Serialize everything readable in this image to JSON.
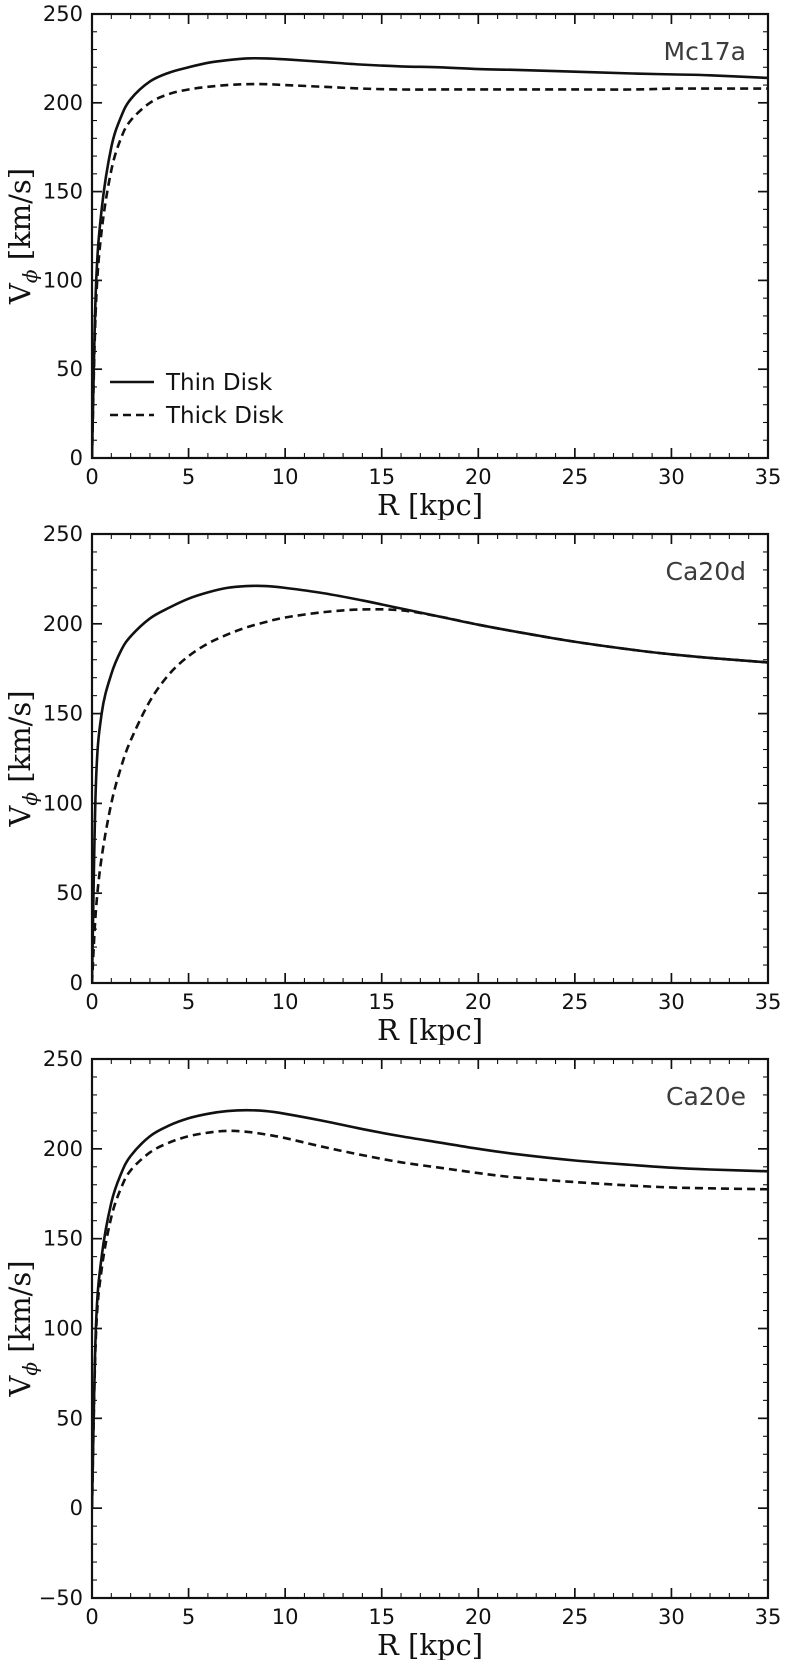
{
  "figure": {
    "description": "Rotation curves of thin and thick disks for three Milky Way models",
    "line_color": "#111111",
    "panel_label_color": "#3c3c3c"
  },
  "chart_data": [
    {
      "type": "line",
      "title": "Mc17a",
      "xlabel": "R [kpc]",
      "ylabel": {
        "var": "V",
        "sub": "ϕ",
        "units": " [km/s]"
      },
      "xlim": [
        0,
        35
      ],
      "ylim": [
        0,
        250
      ],
      "xticks": [
        0,
        5,
        10,
        15,
        20,
        25,
        30,
        35
      ],
      "yticks": [
        0,
        50,
        100,
        150,
        200,
        250
      ],
      "x_minor_step": 1,
      "y_minor_step": 10,
      "grid": false,
      "legend": {
        "position": "lower left",
        "items": [
          {
            "label": "Thin Disk",
            "style": "solid"
          },
          {
            "label": "Thick Disk",
            "style": "dashed"
          }
        ]
      },
      "x": [
        0,
        0.2,
        0.5,
        1,
        1.5,
        2,
        3,
        4,
        5,
        6,
        7,
        8,
        9,
        10,
        12,
        14,
        16,
        18,
        20,
        22,
        25,
        28,
        30,
        32,
        35
      ],
      "series": [
        {
          "name": "Thin Disk",
          "style": "solid",
          "values": [
            0,
            95,
            140,
            175,
            192,
            202,
            212,
            217,
            220,
            222.5,
            224,
            225,
            225,
            224.5,
            223,
            221.5,
            220.5,
            220,
            219,
            218.5,
            217.5,
            216.5,
            216,
            215.5,
            214
          ]
        },
        {
          "name": "Thick Disk",
          "style": "dashed",
          "values": [
            0,
            85,
            128,
            162,
            180,
            190,
            200,
            205,
            207.5,
            209,
            210,
            210.5,
            210.5,
            210,
            209,
            208,
            207.5,
            207.5,
            207.5,
            207.5,
            207.5,
            207.5,
            208,
            208,
            208
          ]
        }
      ]
    },
    {
      "type": "line",
      "title": "Ca20d",
      "xlabel": "R [kpc]",
      "ylabel": {
        "var": "V",
        "sub": "ϕ",
        "units": " [km/s]"
      },
      "xlim": [
        0,
        35
      ],
      "ylim": [
        0,
        250
      ],
      "xticks": [
        0,
        5,
        10,
        15,
        20,
        25,
        30,
        35
      ],
      "yticks": [
        0,
        50,
        100,
        150,
        200,
        250
      ],
      "x_minor_step": 1,
      "y_minor_step": 10,
      "grid": false,
      "legend": null,
      "x": [
        0,
        0.2,
        0.5,
        1,
        1.5,
        2,
        3,
        4,
        5,
        6,
        7,
        8,
        9,
        10,
        12,
        14,
        16,
        18,
        20,
        22,
        25,
        28,
        30,
        32,
        35
      ],
      "series": [
        {
          "name": "Thin Disk",
          "style": "solid",
          "values": [
            0,
            110,
            150,
            172,
            185,
            193,
            203,
            209,
            214,
            217.5,
            220,
            221,
            221,
            220,
            217,
            213,
            208.5,
            204,
            199.5,
            195.5,
            190,
            185.5,
            183,
            181,
            178.5
          ]
        },
        {
          "name": "Thick Disk",
          "style": "dashed",
          "values": [
            0,
            40,
            70,
            100,
            120,
            135,
            157,
            172,
            182,
            189,
            194,
            198,
            201,
            203.5,
            206.5,
            208,
            207.5,
            204,
            199.5,
            195.5,
            190,
            185.5,
            183,
            181,
            178.5
          ]
        }
      ]
    },
    {
      "type": "line",
      "title": "Ca20e",
      "xlabel": "R [kpc]",
      "ylabel": {
        "var": "V",
        "sub": "ϕ",
        "units": " [km/s]"
      },
      "xlim": [
        0,
        35
      ],
      "ylim": [
        -50,
        250
      ],
      "xticks": [
        0,
        5,
        10,
        15,
        20,
        25,
        30,
        35
      ],
      "yticks": [
        -50,
        0,
        50,
        100,
        150,
        200,
        250
      ],
      "x_minor_step": 1,
      "y_minor_step": 10,
      "grid": false,
      "legend": null,
      "x": [
        0,
        0.2,
        0.5,
        1,
        1.5,
        2,
        3,
        4,
        5,
        6,
        7,
        8,
        9,
        10,
        12,
        14,
        16,
        18,
        20,
        22,
        25,
        28,
        30,
        32,
        35
      ],
      "series": [
        {
          "name": "Thin Disk",
          "style": "solid",
          "values": [
            0,
            100,
            140,
            170,
            186,
            196,
            207,
            213,
            217,
            219.5,
            221,
            221.5,
            221,
            219.5,
            215.5,
            211,
            207,
            203.5,
            200,
            197,
            193.5,
            191,
            189.5,
            188.5,
            187.5
          ]
        },
        {
          "name": "Thick Disk",
          "style": "dashed",
          "values": [
            0,
            95,
            133,
            162,
            178,
            188,
            198,
            203.5,
            207,
            209,
            210,
            209.5,
            208,
            206,
            201,
            196.5,
            192.5,
            189.5,
            186.5,
            184,
            181.5,
            179.5,
            178.5,
            178,
            177.5
          ]
        }
      ]
    }
  ]
}
